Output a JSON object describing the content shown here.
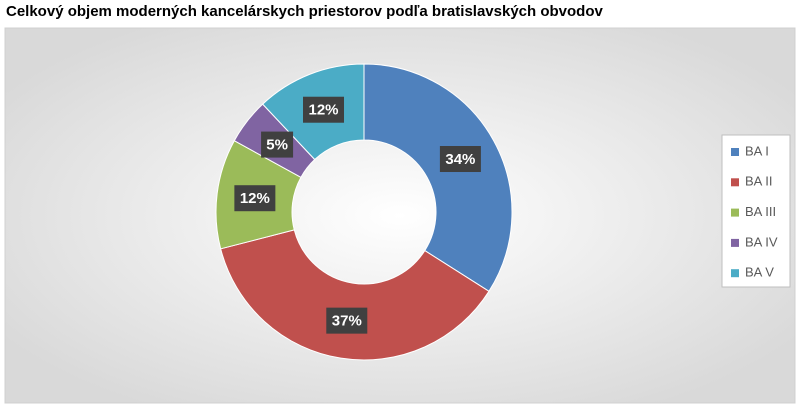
{
  "chart_data": {
    "type": "donut",
    "title": "Celkový objem moderných kancelárskych priestorov podľa bratislavských obvodov",
    "categories": [
      "BA I",
      "BA II",
      "BA III",
      "BA IV",
      "BA V"
    ],
    "values": [
      34,
      37,
      12,
      5,
      12
    ],
    "value_labels": [
      "34%",
      "37%",
      "12%",
      "5%",
      "12%"
    ],
    "colors": [
      "#4f81bd",
      "#c0504d",
      "#9bbb59",
      "#8064a2",
      "#4bacc6"
    ],
    "legend": "right"
  }
}
